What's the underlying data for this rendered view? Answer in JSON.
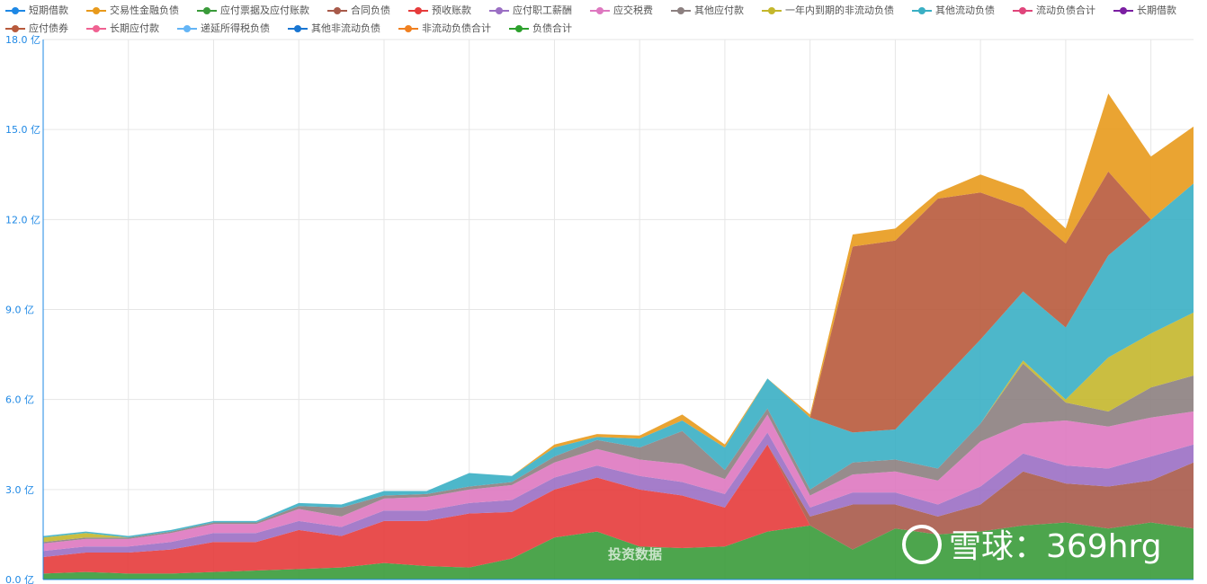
{
  "chart_data": {
    "type": "stacked-area",
    "categories": [
      null,
      null,
      null,
      null,
      null,
      null,
      null,
      null,
      null,
      null,
      null,
      null,
      null,
      null,
      null,
      null,
      null,
      null,
      null,
      null,
      null,
      null,
      null,
      null,
      null,
      null,
      null,
      null
    ],
    "ylim": [
      0,
      18
    ],
    "yticks": [
      {
        "value": 0,
        "label": "0.0 亿"
      },
      {
        "value": 3,
        "label": "3.0 亿"
      },
      {
        "value": 6,
        "label": "6.0 亿"
      },
      {
        "value": 9,
        "label": "9.0 亿"
      },
      {
        "value": 12,
        "label": "12.0 亿"
      },
      {
        "value": 15,
        "label": "15.0 亿"
      },
      {
        "value": 18,
        "label": "18.0 亿"
      }
    ],
    "grid": true,
    "legend": "top",
    "watermarks": [
      "投资数据",
      "雪球：369hrg"
    ],
    "series": [
      {
        "name": "短期借款",
        "color": "#1e88e5",
        "values": [
          0,
          0,
          0,
          0,
          0,
          0,
          0,
          0,
          0,
          0,
          0,
          0,
          0,
          0,
          0,
          0,
          0,
          0,
          0,
          0,
          0,
          0,
          0,
          0,
          0,
          0,
          0,
          0
        ]
      },
      {
        "name": "交易性金融负债",
        "color": "#e89a1c",
        "values": [
          0,
          0,
          0,
          0,
          0,
          0,
          0,
          0,
          0,
          0,
          0,
          0,
          0.1,
          0.1,
          0.1,
          0.2,
          0.1,
          0,
          0.1,
          0.4,
          0.4,
          0.2,
          0.6,
          0.6,
          0.5,
          2.6,
          2.1,
          1.9
        ]
      },
      {
        "name": "应付票据及应付账款",
        "color": "#3a9b3a",
        "values": [
          0.2,
          0.25,
          0.2,
          0.2,
          0.25,
          0.3,
          0.35,
          0.4,
          0.55,
          0.45,
          0.4,
          0.7,
          1.4,
          1.6,
          1.1,
          1.05,
          1.1,
          1.6,
          1.8,
          1.0,
          1.7,
          1.5,
          1.6,
          1.8,
          1.9,
          1.7,
          1.9,
          1.7
        ]
      },
      {
        "name": "合同负债",
        "color": "#a85a4a",
        "values": [
          0,
          0,
          0,
          0,
          0,
          0,
          0,
          0,
          0,
          0,
          0,
          0,
          0,
          0,
          0,
          0,
          0,
          0,
          0.3,
          1.5,
          0.8,
          0.6,
          0.9,
          1.8,
          1.3,
          1.4,
          1.4,
          2.2
        ]
      },
      {
        "name": "预收账款",
        "color": "#e63b3b",
        "values": [
          0.55,
          0.65,
          0.7,
          0.8,
          1.0,
          0.95,
          1.3,
          1.05,
          1.4,
          1.5,
          1.8,
          1.55,
          1.6,
          1.8,
          1.9,
          1.75,
          1.3,
          2.9,
          0,
          0,
          0,
          0,
          0,
          0,
          0,
          0,
          0,
          0
        ]
      },
      {
        "name": "应付职工薪酬",
        "color": "#9b6fc4",
        "values": [
          0.2,
          0.2,
          0.2,
          0.25,
          0.3,
          0.3,
          0.3,
          0.3,
          0.35,
          0.35,
          0.35,
          0.4,
          0.4,
          0.4,
          0.45,
          0.45,
          0.45,
          0.4,
          0.3,
          0.4,
          0.4,
          0.4,
          0.6,
          0.6,
          0.6,
          0.6,
          0.8,
          0.6
        ]
      },
      {
        "name": "应交税费",
        "color": "#de78c0",
        "values": [
          0.25,
          0.25,
          0.25,
          0.3,
          0.3,
          0.3,
          0.4,
          0.35,
          0.4,
          0.45,
          0.45,
          0.5,
          0.5,
          0.55,
          0.55,
          0.6,
          0.5,
          0.6,
          0.4,
          0.6,
          0.7,
          0.8,
          1.5,
          1.0,
          1.5,
          1.4,
          1.3,
          1.1
        ]
      },
      {
        "name": "其他应付款",
        "color": "#8c8080",
        "values": [
          0.05,
          0.05,
          0.05,
          0.05,
          0.05,
          0.05,
          0.1,
          0.3,
          0.1,
          0.1,
          0.1,
          0.1,
          0.2,
          0.3,
          0.4,
          1.1,
          0.3,
          0.2,
          0.2,
          0.4,
          0.4,
          0.4,
          0.6,
          2.0,
          0.6,
          0.5,
          1.0,
          1.2
        ]
      },
      {
        "name": "一年内到期的非流动负债",
        "color": "#c4b72c",
        "values": [
          0.15,
          0.15,
          0,
          0,
          0,
          0,
          0,
          0,
          0,
          0,
          0,
          0,
          0,
          0,
          0,
          0,
          0,
          0,
          0,
          0,
          0,
          0,
          0,
          0.1,
          0.1,
          1.8,
          1.8,
          2.1
        ]
      },
      {
        "name": "其他流动负债",
        "color": "#3aafc4",
        "values": [
          0.05,
          0.05,
          0.05,
          0.05,
          0.05,
          0.05,
          0.1,
          0.1,
          0.15,
          0.1,
          0.45,
          0.2,
          0.3,
          0.1,
          0.3,
          0.35,
          0.75,
          1.0,
          2.4,
          1.0,
          1.0,
          2.8,
          2.8,
          2.3,
          2.4,
          3.4,
          3.8,
          4.3
        ]
      },
      {
        "name": "流动负债合计",
        "color": "#e0457b",
        "values": [
          0,
          0,
          0,
          0,
          0,
          0,
          0,
          0,
          0,
          0,
          0,
          0,
          0,
          0,
          0,
          0,
          0,
          0,
          0,
          0,
          0,
          0,
          0,
          0,
          0,
          0,
          0,
          0
        ]
      },
      {
        "name": "长期借款",
        "color": "#7b1fa2",
        "values": [
          0,
          0,
          0,
          0,
          0,
          0,
          0,
          0,
          0,
          0,
          0,
          0,
          0,
          0,
          0,
          0,
          0,
          0,
          0,
          0,
          0,
          0,
          0,
          0,
          0,
          0,
          0,
          0
        ]
      },
      {
        "name": "应付债券",
        "color": "#b85a3c",
        "values": [
          0,
          0,
          0,
          0,
          0,
          0,
          0,
          0,
          0,
          0,
          0,
          0,
          0,
          0,
          0,
          0,
          0,
          0,
          0,
          6.2,
          6.3,
          6.2,
          4.9,
          2.8,
          2.8,
          2.8,
          0,
          0
        ]
      },
      {
        "name": "长期应付款",
        "color": "#f06292",
        "values": [
          0,
          0,
          0,
          0,
          0,
          0,
          0,
          0,
          0,
          0,
          0,
          0,
          0,
          0,
          0,
          0,
          0,
          0,
          0,
          0,
          0,
          0,
          0,
          0,
          0,
          0,
          0,
          0
        ]
      },
      {
        "name": "递延所得税负债",
        "color": "#64b5f6",
        "values": [
          0,
          0,
          0,
          0,
          0,
          0,
          0,
          0,
          0,
          0,
          0,
          0,
          0,
          0,
          0,
          0,
          0,
          0,
          0,
          0,
          0,
          0,
          0,
          0,
          0,
          0,
          0,
          0
        ]
      },
      {
        "name": "其他非流动负债",
        "color": "#1976d2",
        "values": [
          0,
          0,
          0,
          0,
          0,
          0,
          0,
          0,
          0,
          0,
          0,
          0,
          0,
          0,
          0,
          0,
          0,
          0,
          0,
          0,
          0,
          0,
          0,
          0,
          0,
          0,
          0,
          0
        ]
      },
      {
        "name": "非流动负债合计",
        "color": "#f08020",
        "values": [
          0,
          0,
          0,
          0,
          0,
          0,
          0,
          0,
          0,
          0,
          0,
          0,
          0,
          0,
          0,
          0,
          0,
          0,
          0,
          0,
          0,
          0,
          0,
          0,
          0,
          0,
          0,
          0
        ]
      },
      {
        "name": "负债合计",
        "color": "#2ca02c",
        "values": [
          0,
          0,
          0,
          0,
          0,
          0,
          0,
          0,
          0,
          0,
          0,
          0,
          0,
          0,
          0,
          0,
          0,
          0,
          0,
          0,
          0,
          0,
          0,
          0,
          0,
          0,
          0,
          0
        ]
      }
    ]
  }
}
